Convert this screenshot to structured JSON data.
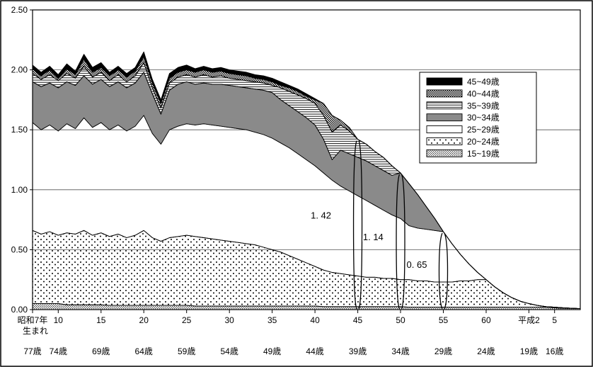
{
  "figure": {
    "background": "#ffffff",
    "border_color": "#000000"
  },
  "chart_data": {
    "type": "area",
    "stacked": true,
    "title": "",
    "grid": "horizontal",
    "legend_position": "upper-right",
    "ylim": [
      0,
      2.5
    ],
    "x_domain": [
      7,
      71
    ],
    "colors": {
      "gray": "#8a8a8a",
      "black": "#000000",
      "white": "#ffffff",
      "grid": "#555555",
      "line": "#000000"
    },
    "x": [
      7,
      8,
      9,
      10,
      11,
      12,
      13,
      14,
      15,
      16,
      17,
      18,
      19,
      20,
      21,
      22,
      23,
      24,
      25,
      26,
      27,
      28,
      29,
      30,
      31,
      32,
      33,
      34,
      35,
      36,
      37,
      38,
      39,
      40,
      41,
      42,
      43,
      44,
      45,
      46,
      47,
      48,
      49,
      50,
      51,
      52,
      53,
      54,
      55,
      56,
      57,
      58,
      59,
      60,
      61,
      62,
      63,
      64,
      65,
      66,
      67,
      68,
      69,
      70,
      71
    ],
    "series": [
      {
        "name": "15~19歳",
        "fill": "dots-fine",
        "values": [
          0.05,
          0.05,
          0.05,
          0.05,
          0.04,
          0.04,
          0.04,
          0.04,
          0.04,
          0.035,
          0.035,
          0.035,
          0.035,
          0.035,
          0.035,
          0.035,
          0.035,
          0.035,
          0.035,
          0.03,
          0.03,
          0.03,
          0.03,
          0.03,
          0.03,
          0.03,
          0.03,
          0.03,
          0.03,
          0.03,
          0.03,
          0.03,
          0.03,
          0.03,
          0.025,
          0.025,
          0.025,
          0.025,
          0.025,
          0.025,
          0.025,
          0.025,
          0.025,
          0.025,
          0.02,
          0.02,
          0.02,
          0.02,
          0.02,
          0.02,
          0.02,
          0.02,
          0.02,
          0.02,
          0.02,
          0.02,
          0.02,
          0.02,
          0.02,
          0.02,
          0.02,
          0.015,
          0.012,
          0.01,
          0.008
        ]
      },
      {
        "name": "20~24歳",
        "fill": "dots-sparse",
        "values": [
          0.61,
          0.58,
          0.6,
          0.57,
          0.6,
          0.59,
          0.62,
          0.58,
          0.6,
          0.575,
          0.595,
          0.565,
          0.585,
          0.625,
          0.565,
          0.535,
          0.565,
          0.575,
          0.585,
          0.58,
          0.57,
          0.56,
          0.55,
          0.54,
          0.53,
          0.52,
          0.51,
          0.49,
          0.47,
          0.45,
          0.42,
          0.39,
          0.36,
          0.33,
          0.305,
          0.285,
          0.275,
          0.265,
          0.255,
          0.245,
          0.245,
          0.235,
          0.235,
          0.225,
          0.23,
          0.22,
          0.22,
          0.21,
          0.21,
          0.21,
          0.22,
          0.22,
          0.23,
          0.23,
          0.17,
          0.12,
          0.08,
          0.05,
          0.03,
          0.015,
          0.005,
          0.005,
          0.003,
          0.001,
          0
        ]
      },
      {
        "name": "25~29歳",
        "fill": "white",
        "values": [
          0.9,
          0.87,
          0.89,
          0.87,
          0.91,
          0.88,
          0.94,
          0.9,
          0.92,
          0.89,
          0.91,
          0.89,
          0.91,
          0.96,
          0.87,
          0.81,
          0.9,
          0.92,
          0.93,
          0.93,
          0.95,
          0.95,
          0.95,
          0.95,
          0.95,
          0.95,
          0.94,
          0.94,
          0.93,
          0.91,
          0.9,
          0.88,
          0.86,
          0.84,
          0.81,
          0.77,
          0.73,
          0.7,
          0.67,
          0.64,
          0.6,
          0.57,
          0.53,
          0.51,
          0.45,
          0.44,
          0.43,
          0.43,
          0.42,
          0.32,
          0.22,
          0.14,
          0.06,
          0,
          0,
          0,
          0,
          0,
          0,
          0,
          0,
          0,
          0,
          0,
          0
        ]
      },
      {
        "name": "30~34歳",
        "fill": "gray",
        "values": [
          0.34,
          0.36,
          0.35,
          0.36,
          0.35,
          0.36,
          0.35,
          0.36,
          0.36,
          0.36,
          0.36,
          0.36,
          0.36,
          0.36,
          0.33,
          0.25,
          0.33,
          0.35,
          0.35,
          0.34,
          0.34,
          0.34,
          0.35,
          0.35,
          0.35,
          0.35,
          0.36,
          0.37,
          0.38,
          0.36,
          0.35,
          0.35,
          0.35,
          0.34,
          0.28,
          0.17,
          0.3,
          0.31,
          0.32,
          0.33,
          0.33,
          0.33,
          0.33,
          0.38,
          0.35,
          0.28,
          0.19,
          0.1,
          0,
          0,
          0,
          0,
          0,
          0,
          0,
          0,
          0,
          0,
          0,
          0,
          0,
          0,
          0,
          0,
          0
        ]
      },
      {
        "name": "35~39歳",
        "fill": "hlines",
        "values": [
          0.07,
          0.06,
          0.07,
          0.06,
          0.07,
          0.06,
          0.08,
          0.06,
          0.06,
          0.05,
          0.06,
          0.05,
          0.06,
          0.08,
          0.05,
          0.05,
          0.06,
          0.06,
          0.06,
          0.06,
          0.07,
          0.06,
          0.07,
          0.06,
          0.06,
          0.06,
          0.06,
          0.06,
          0.06,
          0.1,
          0.12,
          0.14,
          0.16,
          0.18,
          0.2,
          0.23,
          0.21,
          0.19,
          0.15,
          0.14,
          0.12,
          0.11,
          0.08,
          0,
          0,
          0,
          0,
          0,
          0,
          0,
          0,
          0,
          0,
          0,
          0,
          0,
          0,
          0,
          0,
          0,
          0,
          0,
          0,
          0,
          0
        ]
      },
      {
        "name": "40~44歳",
        "fill": "dots-dense",
        "values": [
          0.04,
          0.03,
          0.04,
          0.02,
          0.04,
          0.03,
          0.06,
          0.04,
          0.04,
          0.04,
          0.04,
          0.04,
          0.04,
          0.05,
          0.04,
          0.04,
          0.04,
          0.04,
          0.04,
          0.04,
          0.04,
          0.04,
          0.04,
          0.04,
          0.04,
          0.04,
          0.03,
          0.03,
          0.03,
          0.02,
          0.03,
          0.03,
          0.02,
          0.03,
          0.1,
          0.14,
          0.04,
          0.03,
          0,
          0,
          0,
          0,
          0,
          0,
          0,
          0,
          0,
          0,
          0,
          0,
          0,
          0,
          0,
          0,
          0,
          0,
          0,
          0,
          0,
          0,
          0,
          0,
          0,
          0,
          0
        ]
      },
      {
        "name": "45~49歳",
        "fill": "black",
        "values": [
          0.03,
          0.03,
          0.03,
          0.03,
          0.04,
          0.03,
          0.04,
          0.04,
          0.04,
          0.03,
          0.03,
          0.03,
          0.03,
          0.04,
          0.03,
          0.03,
          0.04,
          0.04,
          0.04,
          0.03,
          0.03,
          0.03,
          0.03,
          0.03,
          0.03,
          0.03,
          0.03,
          0.03,
          0.03,
          0.03,
          0.02,
          0.02,
          0.02,
          0.01,
          0,
          0,
          0,
          0,
          0,
          0,
          0,
          0,
          0,
          0,
          0,
          0,
          0,
          0,
          0,
          0,
          0,
          0,
          0,
          0,
          0,
          0,
          0,
          0,
          0,
          0,
          0,
          0,
          0,
          0,
          0
        ]
      }
    ],
    "legend": {
      "items": [
        "45~49歳",
        "40~44歳",
        "35~39歳",
        "30~34歳",
        "25~29歳",
        "20~24歳",
        "15~19歳"
      ]
    },
    "y_ticks": [
      {
        "v": 0,
        "label": "0.00"
      },
      {
        "v": 0.5,
        "label": "0.50"
      },
      {
        "v": 1,
        "label": "1.00"
      },
      {
        "v": 1.5,
        "label": "1.50"
      },
      {
        "v": 2,
        "label": "2.00"
      },
      {
        "v": 2.5,
        "label": "2.50"
      }
    ],
    "x_ticks": [
      {
        "x": 7,
        "label": "昭和7年",
        "label2": "生まれ",
        "age": "77歳"
      },
      {
        "x": 10,
        "label": "10",
        "age": "74歳"
      },
      {
        "x": 15,
        "label": "15",
        "age": "69歳"
      },
      {
        "x": 20,
        "label": "20",
        "age": "64歳"
      },
      {
        "x": 25,
        "label": "25",
        "age": "59歳"
      },
      {
        "x": 30,
        "label": "30",
        "age": "54歳"
      },
      {
        "x": 35,
        "label": "35",
        "age": "49歳"
      },
      {
        "x": 40,
        "label": "40",
        "age": "44歳"
      },
      {
        "x": 45,
        "label": "45",
        "age": "39歳"
      },
      {
        "x": 50,
        "label": "50",
        "age": "34歳"
      },
      {
        "x": 55,
        "label": "55",
        "age": "29歳"
      },
      {
        "x": 60,
        "label": "60",
        "age": "24歳"
      },
      {
        "x": 65,
        "label": "平成2",
        "age": "19歳"
      },
      {
        "x": 68,
        "label": "5",
        "age": "16歳"
      }
    ],
    "annotations": [
      {
        "label": "1. 42",
        "value": 1.42,
        "brace_x": 45,
        "label_x": 40.7,
        "label_y": 0.76
      },
      {
        "label": "1. 14",
        "value": 1.14,
        "brace_x": 50,
        "label_x": 46.8,
        "label_y": 0.58
      },
      {
        "label": "0. 65",
        "value": 0.65,
        "brace_x": 55,
        "label_x": 51.9,
        "label_y": 0.35
      }
    ]
  }
}
